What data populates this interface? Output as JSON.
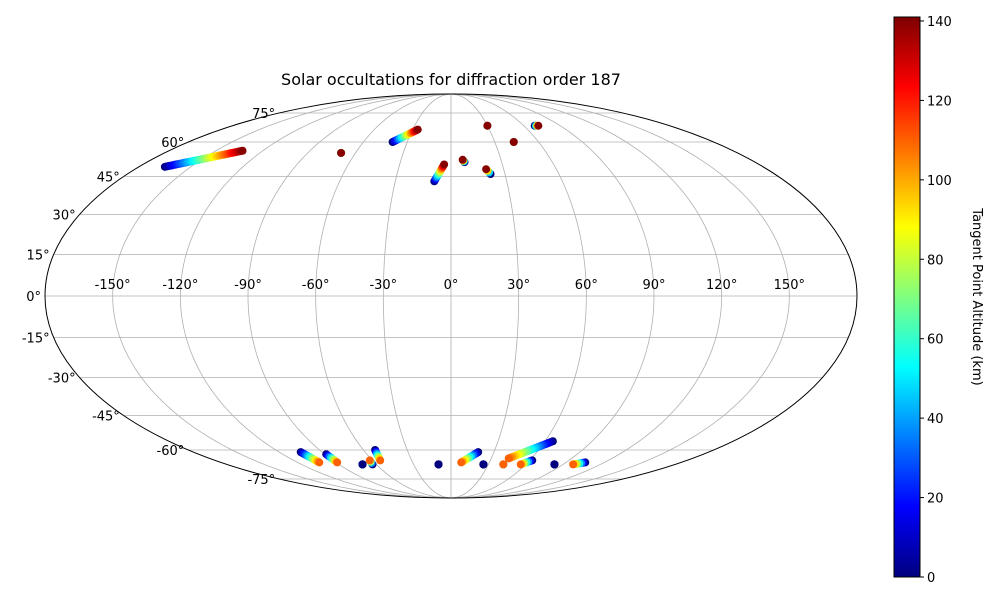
{
  "chart_data": {
    "type": "scatter",
    "projection": "mollweide",
    "title": "Solar occultations for diffraction order 187",
    "lon_ticks": [
      "-150°",
      "-120°",
      "-90°",
      "-60°",
      "-30°",
      "0°",
      "30°",
      "60°",
      "90°",
      "120°",
      "150°"
    ],
    "lat_ticks": [
      "75°",
      "60°",
      "45°",
      "30°",
      "15°",
      "0°",
      "-15°",
      "-30°",
      "-45°",
      "-60°",
      "-75°"
    ],
    "lon_tick_values": [
      -150,
      -120,
      -90,
      -60,
      -30,
      0,
      30,
      60,
      90,
      120,
      150
    ],
    "lat_tick_values": [
      75,
      60,
      45,
      30,
      15,
      0,
      -15,
      -30,
      -45,
      -60,
      -75
    ],
    "grid": true,
    "colorbar": {
      "label": "Tangent Point Altitude (km)",
      "range": [
        0,
        141
      ],
      "ticks": [
        "0",
        "20",
        "40",
        "60",
        "80",
        "100",
        "120",
        "140"
      ],
      "tick_values": [
        0,
        20,
        40,
        60,
        80,
        100,
        120,
        140
      ],
      "colormap": "jet",
      "colors": [
        "#00007f",
        "#0000ff",
        "#007fff",
        "#00ffff",
        "#7fff7f",
        "#ffff00",
        "#ff7f00",
        "#ff0000",
        "#7f0000"
      ]
    },
    "occultations": [
      {
        "start": {
          "lon": -165,
          "lat": 49
        },
        "end": {
          "lon": -133,
          "lat": 56
        },
        "alt_start": 0,
        "alt_end": 140
      },
      {
        "start": {
          "lon": -69,
          "lat": 55
        },
        "end": {
          "lon": -69,
          "lat": 55
        },
        "alt_start": 0,
        "alt_end": 140
      },
      {
        "start": {
          "lon": -40,
          "lat": 60
        },
        "end": {
          "lon": -26,
          "lat": 66
        },
        "alt_start": 0,
        "alt_end": 140
      },
      {
        "start": {
          "lon": -9,
          "lat": 43
        },
        "end": {
          "lon": -4,
          "lat": 50
        },
        "alt_start": 0,
        "alt_end": 140
      },
      {
        "start": {
          "lon": 8,
          "lat": 51
        },
        "end": {
          "lon": 7,
          "lat": 52
        },
        "alt_start": 0,
        "alt_end": 140
      },
      {
        "start": {
          "lon": 22,
          "lat": 46
        },
        "end": {
          "lon": 20,
          "lat": 48
        },
        "alt_start": 0,
        "alt_end": 140
      },
      {
        "start": {
          "lon": 30,
          "lat": 68
        },
        "end": {
          "lon": 30,
          "lat": 68
        },
        "alt_start": 0,
        "alt_end": 140
      },
      {
        "start": {
          "lon": 43,
          "lat": 60
        },
        "end": {
          "lon": 43,
          "lat": 60
        },
        "alt_start": 0,
        "alt_end": 140
      },
      {
        "start": {
          "lon": 69,
          "lat": 68
        },
        "end": {
          "lon": 72,
          "lat": 68
        },
        "alt_start": 0,
        "alt_end": 140
      },
      {
        "start": {
          "lon": -105,
          "lat": -61
        },
        "end": {
          "lon": -103,
          "lat": -66
        },
        "alt_start": 0,
        "alt_end": 110
      },
      {
        "start": {
          "lon": -89,
          "lat": -62
        },
        "end": {
          "lon": -89,
          "lat": -66
        },
        "alt_start": 0,
        "alt_end": 110
      },
      {
        "start": {
          "lon": -71,
          "lat": -67
        },
        "end": {
          "lon": -71,
          "lat": -67
        },
        "alt_start": 0,
        "alt_end": 0
      },
      {
        "start": {
          "lon": -63,
          "lat": -67
        },
        "end": {
          "lon": -62,
          "lat": -65
        },
        "alt_start": 0,
        "alt_end": 110
      },
      {
        "start": {
          "lon": -52,
          "lat": -60
        },
        "end": {
          "lon": -54,
          "lat": -65
        },
        "alt_start": 0,
        "alt_end": 110
      },
      {
        "start": {
          "lon": -10,
          "lat": -67
        },
        "end": {
          "lon": -10,
          "lat": -67
        },
        "alt_start": 0,
        "alt_end": 0
      },
      {
        "start": {
          "lon": 19,
          "lat": -61
        },
        "end": {
          "lon": 8,
          "lat": -66
        },
        "alt_start": 0,
        "alt_end": 110
      },
      {
        "start": {
          "lon": 26,
          "lat": -67
        },
        "end": {
          "lon": 26,
          "lat": -67
        },
        "alt_start": 0,
        "alt_end": 0
      },
      {
        "start": {
          "lon": 42,
          "lat": -67
        },
        "end": {
          "lon": 42,
          "lat": -67
        },
        "alt_start": 0,
        "alt_end": 110
      },
      {
        "start": {
          "lon": 65,
          "lat": -56
        },
        "end": {
          "lon": 43,
          "lat": -64
        },
        "alt_start": 0,
        "alt_end": 110
      },
      {
        "start": {
          "lon": 62,
          "lat": -65
        },
        "end": {
          "lon": 56,
          "lat": -67
        },
        "alt_start": 0,
        "alt_end": 110
      },
      {
        "start": {
          "lon": 83,
          "lat": -67
        },
        "end": {
          "lon": 83,
          "lat": -67
        },
        "alt_start": 0,
        "alt_end": 0
      },
      {
        "start": {
          "lon": 105,
          "lat": -66
        },
        "end": {
          "lon": 98,
          "lat": -67
        },
        "alt_start": 0,
        "alt_end": 110
      }
    ]
  }
}
